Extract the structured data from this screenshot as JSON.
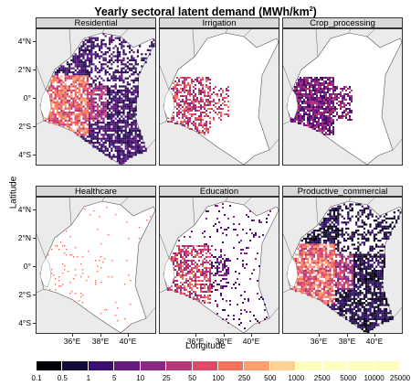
{
  "title": "Yearly sectoral latent demand (MWh/km",
  "title_sup": "2",
  "title_end": ")",
  "ylabel": "Latitude",
  "xlabel": "Longitude",
  "panels": [
    {
      "name": "Residential",
      "style": "dense",
      "base": "#3b0f70"
    },
    {
      "name": "Irrigation",
      "style": "sparse",
      "base": "#d3436e"
    },
    {
      "name": "Crop_processing",
      "style": "west",
      "base": "#7a1d6d"
    },
    {
      "name": "Healthcare",
      "style": "dots",
      "base": "#f4694b"
    },
    {
      "name": "Education",
      "style": "scatter",
      "base": "#6b1b7a"
    },
    {
      "name": "Productive_commercial",
      "style": "dense",
      "base": "#1d1147"
    }
  ],
  "y_ticks": [
    "4°N",
    "2°N",
    "0°",
    "2°S",
    "4°S"
  ],
  "x_ticks": [
    "36°E",
    "38°E",
    "40°E"
  ],
  "legend": {
    "labels": [
      "0.1",
      "0.5",
      "1",
      "5",
      "10",
      "25",
      "50",
      "100",
      "250",
      "500",
      "1000",
      "2500",
      "5000",
      "10000",
      "25000"
    ],
    "colors": [
      "#000004",
      "#140e36",
      "#3b0f70",
      "#641a80",
      "#8c2981",
      "#b73779",
      "#de4968",
      "#f7705c",
      "#fe9f6d",
      "#fecf92",
      "#fcfdbf",
      "#fcfdbf"
    ]
  }
}
